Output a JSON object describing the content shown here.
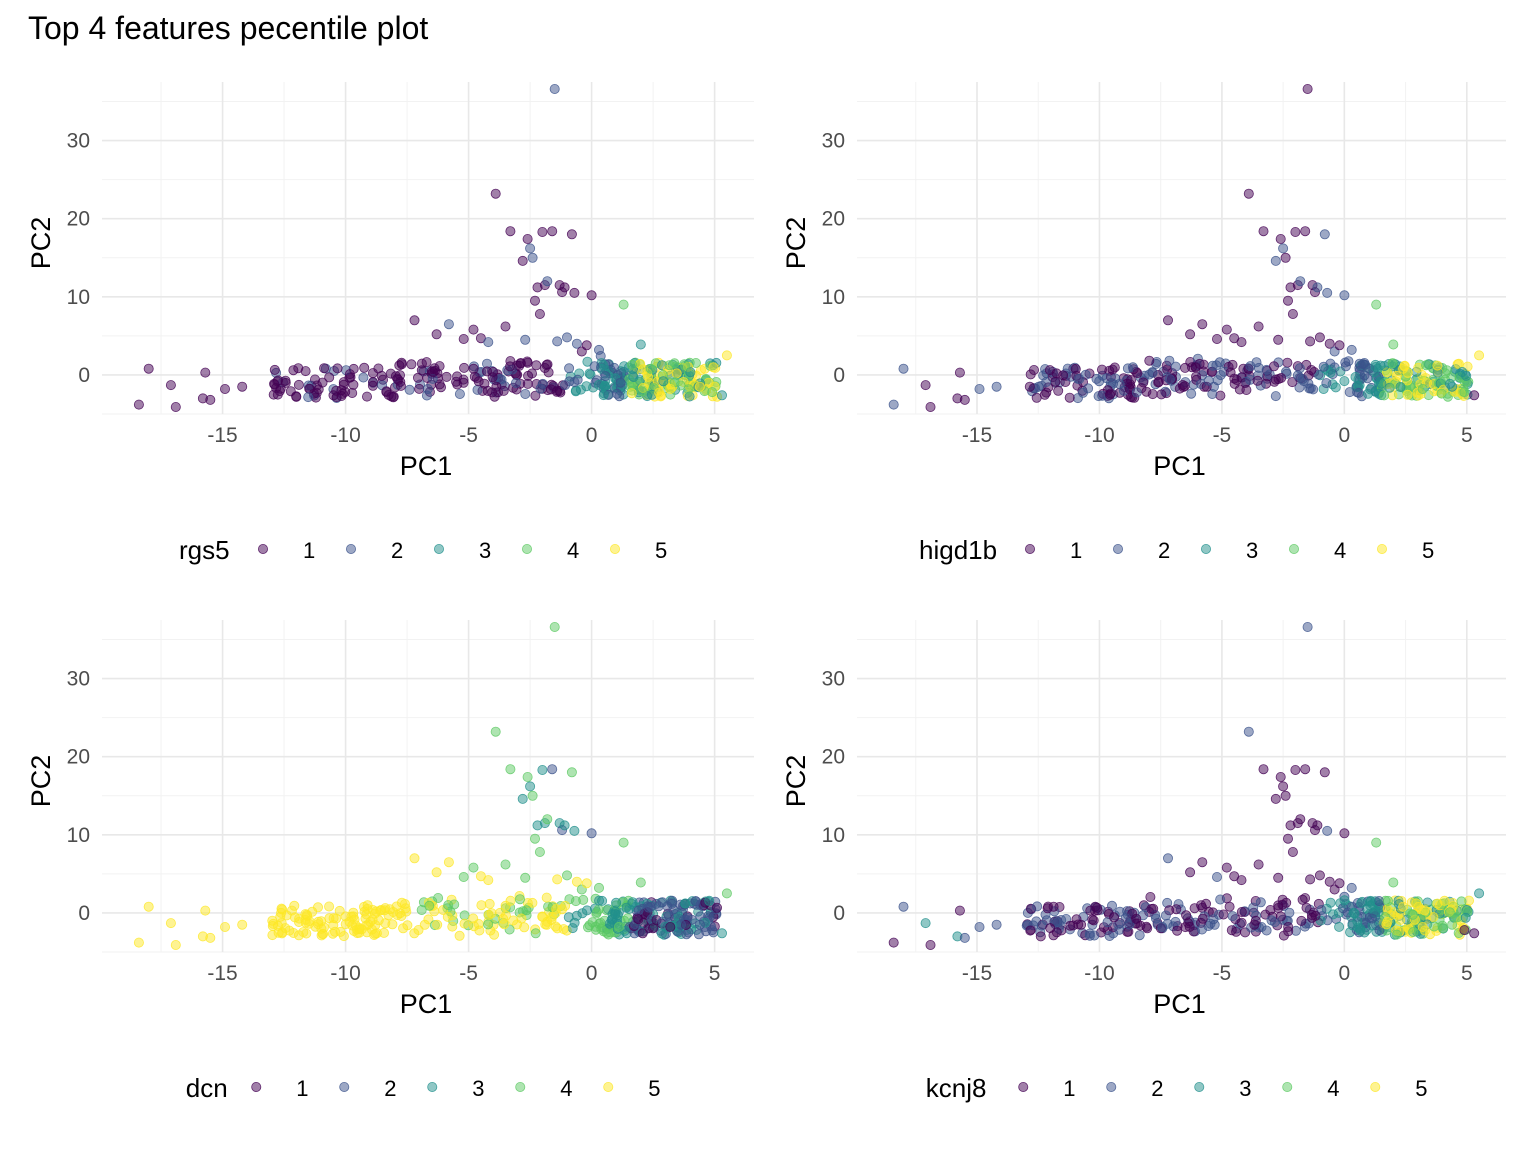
{
  "title": "Top 4 features pecentile plot",
  "chart_data": [
    {
      "type": "scatter",
      "feature": "rgs5",
      "xlabel": "PC1",
      "ylabel": "PC2",
      "xlim": [
        -19.9,
        6.6
      ],
      "ylim": [
        -5.0,
        37.5
      ],
      "x_ticks": [
        -15,
        -10,
        -5,
        0,
        5
      ],
      "y_ticks": [
        0,
        10,
        20,
        30
      ],
      "grid": true,
      "legend_title": "rgs5",
      "legend_position": "bottom",
      "legend_labels": [
        "1",
        "2",
        "3",
        "4",
        "5"
      ],
      "highlights": [
        {
          "x": -18.4,
          "y": -3.8,
          "g": 1
        },
        {
          "x": -18.0,
          "y": 0.8,
          "g": 1
        },
        {
          "x": -17.1,
          "y": -1.3,
          "g": 1
        },
        {
          "x": -16.9,
          "y": -4.1,
          "g": 1
        },
        {
          "x": -15.8,
          "y": -3.0,
          "g": 1
        },
        {
          "x": -15.7,
          "y": 0.3,
          "g": 1
        },
        {
          "x": -15.5,
          "y": -3.2,
          "g": 1
        },
        {
          "x": -14.9,
          "y": -1.8,
          "g": 1
        },
        {
          "x": -14.2,
          "y": -1.5,
          "g": 1
        },
        {
          "x": -7.2,
          "y": 7.0,
          "g": 1
        },
        {
          "x": -6.3,
          "y": 5.2,
          "g": 1
        },
        {
          "x": -5.8,
          "y": 6.5,
          "g": 2
        },
        {
          "x": -5.2,
          "y": 4.6,
          "g": 1
        },
        {
          "x": -4.8,
          "y": 5.8,
          "g": 1
        },
        {
          "x": -4.5,
          "y": 4.7,
          "g": 1
        },
        {
          "x": -4.2,
          "y": 4.2,
          "g": 2
        },
        {
          "x": -3.9,
          "y": 23.2,
          "g": 1
        },
        {
          "x": -3.5,
          "y": 6.2,
          "g": 1
        },
        {
          "x": -3.3,
          "y": 18.4,
          "g": 1
        },
        {
          "x": -2.8,
          "y": 14.6,
          "g": 1
        },
        {
          "x": -2.7,
          "y": 4.5,
          "g": 2
        },
        {
          "x": -2.6,
          "y": 17.4,
          "g": 1
        },
        {
          "x": -2.5,
          "y": 16.2,
          "g": 2
        },
        {
          "x": -2.4,
          "y": 15.0,
          "g": 2
        },
        {
          "x": -2.3,
          "y": 9.5,
          "g": 1
        },
        {
          "x": -2.2,
          "y": 11.2,
          "g": 1
        },
        {
          "x": -2.1,
          "y": 7.8,
          "g": 1
        },
        {
          "x": -2.0,
          "y": 18.3,
          "g": 1
        },
        {
          "x": -1.9,
          "y": 11.5,
          "g": 1
        },
        {
          "x": -1.8,
          "y": 12.0,
          "g": 2
        },
        {
          "x": -1.6,
          "y": 18.4,
          "g": 1
        },
        {
          "x": -1.5,
          "y": 36.6,
          "g": 2
        },
        {
          "x": -1.4,
          "y": 4.3,
          "g": 2
        },
        {
          "x": -1.3,
          "y": 11.5,
          "g": 1
        },
        {
          "x": -1.2,
          "y": 10.6,
          "g": 1
        },
        {
          "x": -1.1,
          "y": 11.2,
          "g": 1
        },
        {
          "x": -1.0,
          "y": 4.8,
          "g": 2
        },
        {
          "x": -0.8,
          "y": 18.0,
          "g": 1
        },
        {
          "x": -0.7,
          "y": 10.5,
          "g": 1
        },
        {
          "x": -0.6,
          "y": 4.0,
          "g": 2
        },
        {
          "x": -0.4,
          "y": 3.0,
          "g": 1
        },
        {
          "x": -0.2,
          "y": 3.8,
          "g": 1
        },
        {
          "x": 0.0,
          "y": 10.2,
          "g": 1
        },
        {
          "x": 0.3,
          "y": 3.2,
          "g": 2
        },
        {
          "x": 1.3,
          "y": 9.0,
          "g": 4
        },
        {
          "x": 2.0,
          "y": 3.9,
          "g": 3
        },
        {
          "x": 5.5,
          "y": 2.5,
          "g": 5
        },
        {
          "x": 5.3,
          "y": -2.6,
          "g": 3
        },
        {
          "x": 4.9,
          "y": -2.2,
          "g": 4
        },
        {
          "x": 2.4,
          "y": 0.8,
          "g": 4
        },
        {
          "x": 3.2,
          "y": -1.8,
          "g": 5
        },
        {
          "x": 4.4,
          "y": -1.5,
          "g": 5
        },
        {
          "x": 3.8,
          "y": 1.2,
          "g": 4
        }
      ]
    },
    {
      "type": "scatter",
      "feature": "higd1b",
      "xlabel": "PC1",
      "ylabel": "PC2",
      "xlim": [
        -19.9,
        6.6
      ],
      "ylim": [
        -5.0,
        37.5
      ],
      "x_ticks": [
        -15,
        -10,
        -5,
        0,
        5
      ],
      "y_ticks": [
        0,
        10,
        20,
        30
      ],
      "grid": true,
      "legend_title": "higd1b",
      "legend_position": "bottom",
      "legend_labels": [
        "1",
        "2",
        "3",
        "4",
        "5"
      ],
      "highlights": [
        {
          "x": -18.4,
          "y": -3.8,
          "g": 2
        },
        {
          "x": -18.0,
          "y": 0.8,
          "g": 2
        },
        {
          "x": -17.1,
          "y": -1.3,
          "g": 1
        },
        {
          "x": -16.9,
          "y": -4.1,
          "g": 1
        },
        {
          "x": -15.8,
          "y": -3.0,
          "g": 1
        },
        {
          "x": -15.7,
          "y": 0.3,
          "g": 1
        },
        {
          "x": -15.5,
          "y": -3.2,
          "g": 1
        },
        {
          "x": -14.9,
          "y": -1.8,
          "g": 2
        },
        {
          "x": -14.2,
          "y": -1.5,
          "g": 2
        },
        {
          "x": -7.2,
          "y": 7.0,
          "g": 1
        },
        {
          "x": -6.3,
          "y": 5.2,
          "g": 1
        },
        {
          "x": -5.8,
          "y": 6.5,
          "g": 1
        },
        {
          "x": -5.2,
          "y": 4.6,
          "g": 1
        },
        {
          "x": -4.8,
          "y": 5.8,
          "g": 1
        },
        {
          "x": -4.5,
          "y": 4.7,
          "g": 1
        },
        {
          "x": -4.2,
          "y": 4.2,
          "g": 1
        },
        {
          "x": -3.9,
          "y": 23.2,
          "g": 1
        },
        {
          "x": -3.5,
          "y": 6.2,
          "g": 1
        },
        {
          "x": -3.3,
          "y": 18.4,
          "g": 1
        },
        {
          "x": -2.8,
          "y": 14.6,
          "g": 2
        },
        {
          "x": -2.7,
          "y": 4.5,
          "g": 1
        },
        {
          "x": -2.6,
          "y": 17.4,
          "g": 1
        },
        {
          "x": -2.5,
          "y": 16.2,
          "g": 2
        },
        {
          "x": -2.4,
          "y": 15.0,
          "g": 1
        },
        {
          "x": -2.3,
          "y": 9.5,
          "g": 1
        },
        {
          "x": -2.2,
          "y": 11.2,
          "g": 1
        },
        {
          "x": -2.1,
          "y": 7.8,
          "g": 1
        },
        {
          "x": -2.0,
          "y": 18.3,
          "g": 1
        },
        {
          "x": -1.9,
          "y": 11.5,
          "g": 1
        },
        {
          "x": -1.8,
          "y": 12.0,
          "g": 2
        },
        {
          "x": -1.6,
          "y": 18.4,
          "g": 1
        },
        {
          "x": -1.5,
          "y": 36.6,
          "g": 1
        },
        {
          "x": -1.4,
          "y": 4.3,
          "g": 1
        },
        {
          "x": -1.3,
          "y": 11.5,
          "g": 1
        },
        {
          "x": -1.2,
          "y": 10.6,
          "g": 1
        },
        {
          "x": -1.1,
          "y": 11.2,
          "g": 2
        },
        {
          "x": -1.0,
          "y": 4.8,
          "g": 1
        },
        {
          "x": -0.8,
          "y": 18.0,
          "g": 2
        },
        {
          "x": -0.7,
          "y": 10.5,
          "g": 2
        },
        {
          "x": -0.6,
          "y": 4.0,
          "g": 1
        },
        {
          "x": -0.4,
          "y": 3.0,
          "g": 2
        },
        {
          "x": -0.2,
          "y": 3.8,
          "g": 1
        },
        {
          "x": 0.0,
          "y": 10.2,
          "g": 2
        },
        {
          "x": 0.3,
          "y": 3.2,
          "g": 2
        },
        {
          "x": 1.3,
          "y": 9.0,
          "g": 4
        },
        {
          "x": 2.0,
          "y": 3.9,
          "g": 4
        },
        {
          "x": 5.5,
          "y": 2.5,
          "g": 5
        },
        {
          "x": 5.3,
          "y": -2.6,
          "g": 1
        },
        {
          "x": 4.9,
          "y": -2.2,
          "g": 4
        },
        {
          "x": 2.4,
          "y": 0.8,
          "g": 5
        },
        {
          "x": 3.2,
          "y": -1.8,
          "g": 4
        },
        {
          "x": 4.4,
          "y": -1.5,
          "g": 3
        },
        {
          "x": 3.8,
          "y": 1.2,
          "g": 5
        }
      ]
    },
    {
      "type": "scatter",
      "feature": "dcn",
      "xlabel": "PC1",
      "ylabel": "PC2",
      "xlim": [
        -19.9,
        6.6
      ],
      "ylim": [
        -5.0,
        37.5
      ],
      "x_ticks": [
        -15,
        -10,
        -5,
        0,
        5
      ],
      "y_ticks": [
        0,
        10,
        20,
        30
      ],
      "grid": true,
      "legend_title": "dcn",
      "legend_position": "bottom",
      "legend_labels": [
        "1",
        "2",
        "3",
        "4",
        "5"
      ],
      "highlights": [
        {
          "x": -18.4,
          "y": -3.8,
          "g": 5
        },
        {
          "x": -18.0,
          "y": 0.8,
          "g": 5
        },
        {
          "x": -17.1,
          "y": -1.3,
          "g": 5
        },
        {
          "x": -16.9,
          "y": -4.1,
          "g": 5
        },
        {
          "x": -15.8,
          "y": -3.0,
          "g": 5
        },
        {
          "x": -15.7,
          "y": 0.3,
          "g": 5
        },
        {
          "x": -15.5,
          "y": -3.2,
          "g": 5
        },
        {
          "x": -14.9,
          "y": -1.8,
          "g": 5
        },
        {
          "x": -14.2,
          "y": -1.5,
          "g": 5
        },
        {
          "x": -7.2,
          "y": 7.0,
          "g": 5
        },
        {
          "x": -6.3,
          "y": 5.2,
          "g": 5
        },
        {
          "x": -5.8,
          "y": 6.5,
          "g": 5
        },
        {
          "x": -5.2,
          "y": 4.6,
          "g": 4
        },
        {
          "x": -4.8,
          "y": 5.8,
          "g": 4
        },
        {
          "x": -4.5,
          "y": 4.7,
          "g": 5
        },
        {
          "x": -4.2,
          "y": 4.2,
          "g": 5
        },
        {
          "x": -3.9,
          "y": 23.2,
          "g": 4
        },
        {
          "x": -3.5,
          "y": 6.2,
          "g": 4
        },
        {
          "x": -3.3,
          "y": 18.4,
          "g": 4
        },
        {
          "x": -2.8,
          "y": 14.6,
          "g": 3
        },
        {
          "x": -2.7,
          "y": 4.5,
          "g": 4
        },
        {
          "x": -2.6,
          "y": 17.4,
          "g": 4
        },
        {
          "x": -2.5,
          "y": 16.2,
          "g": 3
        },
        {
          "x": -2.4,
          "y": 15.0,
          "g": 4
        },
        {
          "x": -2.3,
          "y": 9.5,
          "g": 4
        },
        {
          "x": -2.2,
          "y": 11.2,
          "g": 3
        },
        {
          "x": -2.1,
          "y": 7.8,
          "g": 4
        },
        {
          "x": -2.0,
          "y": 18.3,
          "g": 3
        },
        {
          "x": -1.9,
          "y": 11.5,
          "g": 3
        },
        {
          "x": -1.8,
          "y": 12.0,
          "g": 4
        },
        {
          "x": -1.6,
          "y": 18.4,
          "g": 2
        },
        {
          "x": -1.5,
          "y": 36.6,
          "g": 4
        },
        {
          "x": -1.4,
          "y": 4.3,
          "g": 5
        },
        {
          "x": -1.3,
          "y": 11.5,
          "g": 3
        },
        {
          "x": -1.2,
          "y": 10.6,
          "g": 2
        },
        {
          "x": -1.1,
          "y": 11.2,
          "g": 3
        },
        {
          "x": -1.0,
          "y": 4.8,
          "g": 4
        },
        {
          "x": -0.8,
          "y": 18.0,
          "g": 4
        },
        {
          "x": -0.7,
          "y": 10.5,
          "g": 3
        },
        {
          "x": -0.6,
          "y": 4.0,
          "g": 5
        },
        {
          "x": -0.4,
          "y": 3.0,
          "g": 4
        },
        {
          "x": -0.2,
          "y": 3.8,
          "g": 5
        },
        {
          "x": 0.0,
          "y": 10.2,
          "g": 2
        },
        {
          "x": 0.3,
          "y": 3.2,
          "g": 4
        },
        {
          "x": 1.3,
          "y": 9.0,
          "g": 4
        },
        {
          "x": 2.0,
          "y": 3.9,
          "g": 4
        },
        {
          "x": 5.5,
          "y": 2.5,
          "g": 4
        },
        {
          "x": 5.3,
          "y": -2.6,
          "g": 3
        },
        {
          "x": 4.9,
          "y": -2.2,
          "g": 2
        },
        {
          "x": 2.4,
          "y": 0.8,
          "g": 2
        },
        {
          "x": 3.2,
          "y": -1.8,
          "g": 1
        },
        {
          "x": 4.4,
          "y": -1.5,
          "g": 2
        },
        {
          "x": 3.8,
          "y": 1.2,
          "g": 3
        }
      ]
    },
    {
      "type": "scatter",
      "feature": "kcnj8",
      "xlabel": "PC1",
      "ylabel": "PC2",
      "xlim": [
        -19.9,
        6.6
      ],
      "ylim": [
        -5.0,
        37.5
      ],
      "x_ticks": [
        -15,
        -10,
        -5,
        0,
        5
      ],
      "y_ticks": [
        0,
        10,
        20,
        30
      ],
      "grid": true,
      "legend_title": "kcnj8",
      "legend_position": "bottom",
      "legend_labels": [
        "1",
        "2",
        "3",
        "4",
        "5"
      ],
      "highlights": [
        {
          "x": -18.4,
          "y": -3.8,
          "g": 1
        },
        {
          "x": -18.0,
          "y": 0.8,
          "g": 2
        },
        {
          "x": -17.1,
          "y": -1.3,
          "g": 3
        },
        {
          "x": -16.9,
          "y": -4.1,
          "g": 1
        },
        {
          "x": -15.8,
          "y": -3.0,
          "g": 3
        },
        {
          "x": -15.7,
          "y": 0.3,
          "g": 1
        },
        {
          "x": -15.5,
          "y": -3.2,
          "g": 2
        },
        {
          "x": -14.9,
          "y": -1.8,
          "g": 2
        },
        {
          "x": -14.2,
          "y": -1.5,
          "g": 2
        },
        {
          "x": -7.2,
          "y": 7.0,
          "g": 2
        },
        {
          "x": -6.3,
          "y": 5.2,
          "g": 1
        },
        {
          "x": -5.8,
          "y": 6.5,
          "g": 1
        },
        {
          "x": -5.2,
          "y": 4.6,
          "g": 2
        },
        {
          "x": -4.8,
          "y": 5.8,
          "g": 1
        },
        {
          "x": -4.5,
          "y": 4.7,
          "g": 1
        },
        {
          "x": -4.2,
          "y": 4.2,
          "g": 1
        },
        {
          "x": -3.9,
          "y": 23.2,
          "g": 2
        },
        {
          "x": -3.5,
          "y": 6.2,
          "g": 1
        },
        {
          "x": -3.3,
          "y": 18.4,
          "g": 1
        },
        {
          "x": -2.8,
          "y": 14.6,
          "g": 1
        },
        {
          "x": -2.7,
          "y": 4.5,
          "g": 1
        },
        {
          "x": -2.6,
          "y": 17.4,
          "g": 1
        },
        {
          "x": -2.5,
          "y": 16.2,
          "g": 1
        },
        {
          "x": -2.4,
          "y": 15.0,
          "g": 1
        },
        {
          "x": -2.3,
          "y": 9.5,
          "g": 1
        },
        {
          "x": -2.2,
          "y": 11.2,
          "g": 1
        },
        {
          "x": -2.1,
          "y": 7.8,
          "g": 1
        },
        {
          "x": -2.0,
          "y": 18.3,
          "g": 1
        },
        {
          "x": -1.9,
          "y": 11.5,
          "g": 1
        },
        {
          "x": -1.8,
          "y": 12.0,
          "g": 1
        },
        {
          "x": -1.6,
          "y": 18.4,
          "g": 1
        },
        {
          "x": -1.5,
          "y": 36.6,
          "g": 2
        },
        {
          "x": -1.4,
          "y": 4.3,
          "g": 1
        },
        {
          "x": -1.3,
          "y": 11.5,
          "g": 1
        },
        {
          "x": -1.2,
          "y": 10.6,
          "g": 1
        },
        {
          "x": -1.1,
          "y": 11.2,
          "g": 1
        },
        {
          "x": -1.0,
          "y": 4.8,
          "g": 1
        },
        {
          "x": -0.8,
          "y": 18.0,
          "g": 1
        },
        {
          "x": -0.7,
          "y": 10.5,
          "g": 2
        },
        {
          "x": -0.6,
          "y": 4.0,
          "g": 1
        },
        {
          "x": -0.4,
          "y": 3.0,
          "g": 1
        },
        {
          "x": -0.2,
          "y": 3.8,
          "g": 1
        },
        {
          "x": 0.0,
          "y": 10.2,
          "g": 1
        },
        {
          "x": 0.3,
          "y": 3.2,
          "g": 2
        },
        {
          "x": 1.3,
          "y": 9.0,
          "g": 4
        },
        {
          "x": 2.0,
          "y": 3.9,
          "g": 4
        },
        {
          "x": 5.5,
          "y": 2.5,
          "g": 3
        },
        {
          "x": 5.3,
          "y": -2.6,
          "g": 1
        },
        {
          "x": 4.9,
          "y": -2.2,
          "g": 1
        },
        {
          "x": 2.4,
          "y": 0.8,
          "g": 5
        },
        {
          "x": 3.2,
          "y": -1.8,
          "g": 5
        },
        {
          "x": 4.4,
          "y": -1.5,
          "g": 4
        },
        {
          "x": 3.8,
          "y": 1.2,
          "g": 5
        }
      ]
    }
  ],
  "palette": [
    "#440154",
    "#3b528b",
    "#21908c",
    "#5dc963",
    "#fde725"
  ],
  "point_opacity": 0.5
}
